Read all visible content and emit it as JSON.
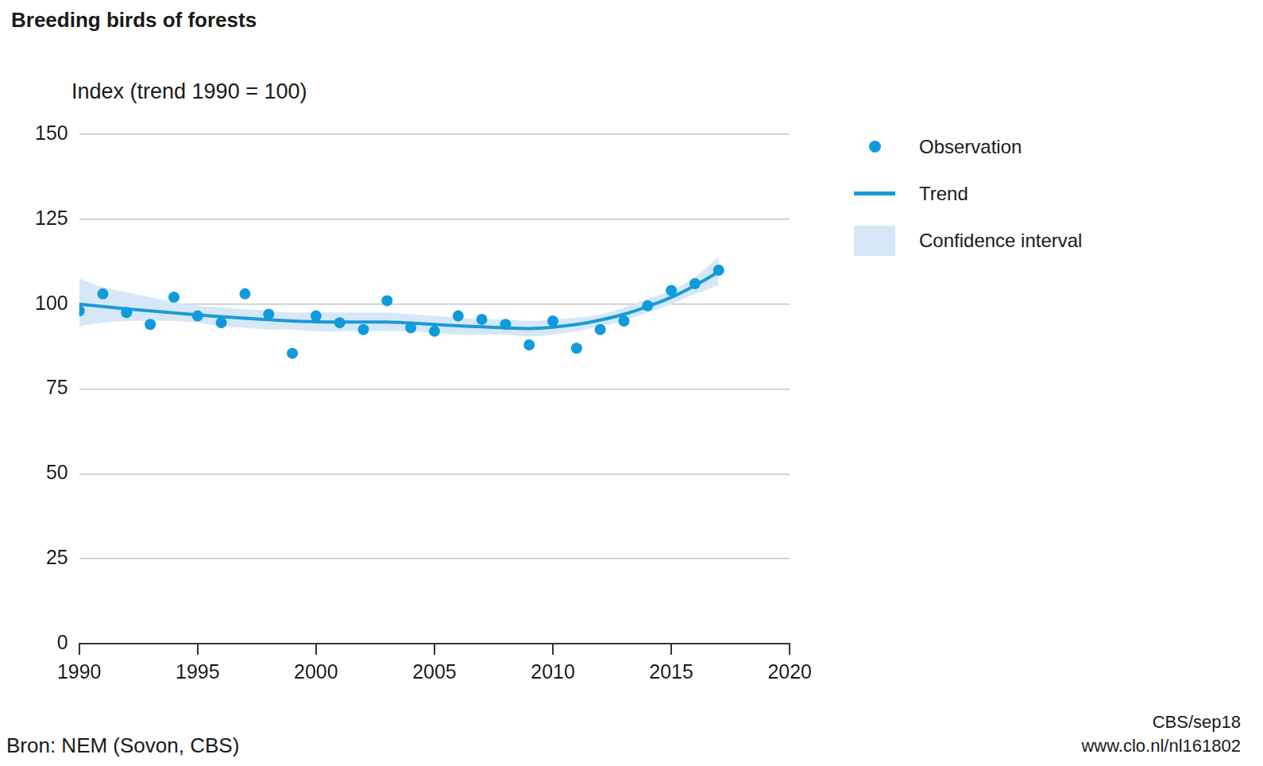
{
  "chart_data": {
    "type": "line",
    "title": "Breeding birds of forests",
    "y_label": "Index (trend 1990 = 100)",
    "annotations": [
      "Bron: NEM (Sovon, CBS)",
      "CBS/sep18",
      "www.clo.nl/nl161802"
    ],
    "x": [
      1990,
      1991,
      1992,
      1993,
      1994,
      1995,
      1996,
      1997,
      1998,
      1999,
      2000,
      2001,
      2002,
      2003,
      2004,
      2005,
      2006,
      2007,
      2008,
      2009,
      2010,
      2011,
      2012,
      2013,
      2014,
      2015,
      2016,
      2017
    ],
    "series": [
      {
        "name": "Observation",
        "type": "scatter",
        "marker": "circle",
        "color": "#0f9bdb",
        "values": [
          98,
          103,
          97.5,
          94,
          102,
          96.5,
          94.5,
          103,
          97,
          85.5,
          96.5,
          94.5,
          92.5,
          101,
          93,
          92,
          96.5,
          95.5,
          94,
          88,
          95,
          87,
          92.5,
          95,
          99.5,
          104,
          106,
          110
        ]
      },
      {
        "name": "Trend",
        "type": "line",
        "line_style": "solid",
        "color": "#1a9ad6",
        "values": [
          100,
          99.3,
          98.6,
          98,
          97.4,
          96.8,
          96.3,
          95.8,
          95.4,
          95,
          94.8,
          94.7,
          94.7,
          94.7,
          94.4,
          94,
          93.6,
          93.3,
          93,
          92.8,
          93.2,
          94,
          95.3,
          97,
          99.3,
          102,
          105.5,
          109.5
        ]
      },
      {
        "name": "Confidence interval",
        "type": "area",
        "color": "#d6e8f8",
        "lower": [
          93.5,
          94.5,
          95,
          95,
          95,
          94.5,
          93.5,
          93,
          92.5,
          92.5,
          92,
          92,
          92,
          92,
          92,
          91.5,
          91,
          91,
          91,
          90.5,
          91,
          92,
          93.5,
          95,
          97.5,
          100,
          103,
          105.5
        ],
        "upper": [
          107.5,
          105,
          103.5,
          102,
          100.5,
          99.5,
          99,
          98.5,
          98,
          97.5,
          97.5,
          97.5,
          97.5,
          97.5,
          97,
          96.5,
          96,
          95.5,
          95.5,
          95,
          95.5,
          96,
          97,
          99,
          101.5,
          104,
          108,
          114
        ]
      }
    ],
    "xlim": [
      1990,
      2020
    ],
    "xticks": [
      1990,
      1995,
      2000,
      2005,
      2010,
      2015,
      2020
    ],
    "ylim": [
      0,
      150
    ],
    "yticks": [
      0,
      25,
      50,
      75,
      100,
      125,
      150
    ],
    "grid": true,
    "legend": "right"
  }
}
